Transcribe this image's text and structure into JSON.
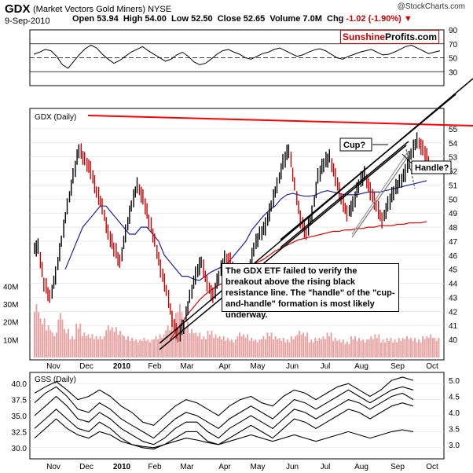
{
  "header": {
    "title": "GDX",
    "subtitle": "(Market Vectors Gold Miners)",
    "exchange": "NYSE",
    "date": "9-Sep-2010",
    "open_label": "Open",
    "open": "53.94",
    "high_label": "High",
    "high": "54.00",
    "low_label": "Low",
    "low": "52.50",
    "close_label": "Close",
    "close": "52.65",
    "volume_label": "Volume",
    "volume": "7.0M",
    "chg_label": "Chg",
    "chg": "-1.02 (-1.90%)",
    "copyright": "@StockCharts.com",
    "brand_part1": "Sunshine",
    "brand_part2": "Profits.com"
  },
  "annotations": {
    "cup": "Cup?",
    "handle": "Handle?",
    "note": "The GDX ETF failed to verify the breakout above the rising black resistance line. The \"handle\" of the \"cup-and-handle\" formation is most likely underway."
  },
  "colors": {
    "up": "#000000",
    "down": "#cc0000",
    "resistance": "#ff0000",
    "ma50": "#1f1fa0",
    "ma200": "#dd0000",
    "volume": "#e8a0a0"
  },
  "chart_data": [
    {
      "type": "line",
      "title": "",
      "ylim": [
        10,
        90
      ],
      "y_ticks": [
        "90",
        "70",
        "50",
        "30"
      ],
      "reference_lines": [
        70,
        50,
        30
      ],
      "values": [
        55,
        58,
        62,
        60,
        52,
        40,
        35,
        45,
        55,
        63,
        68,
        64,
        55,
        48,
        42,
        46,
        52,
        58,
        62,
        66,
        60,
        55,
        50,
        45,
        48,
        54,
        58,
        52,
        44,
        40,
        42,
        48,
        55,
        60,
        62,
        58,
        55,
        50,
        48,
        52,
        56,
        58,
        62,
        64,
        60,
        56,
        52,
        54,
        58,
        61,
        63,
        60,
        55,
        50,
        48,
        52,
        55,
        58,
        60,
        62,
        58,
        54,
        55,
        58,
        62,
        66,
        68,
        64,
        60,
        56,
        58,
        60
      ]
    },
    {
      "type": "line",
      "title": "GDX (Daily)",
      "ylim": [
        39,
        56
      ],
      "y_ticks": [
        "55",
        "54",
        "53",
        "52",
        "51",
        "50",
        "49",
        "48",
        "47",
        "46",
        "45",
        "44",
        "43",
        "42",
        "41",
        "40"
      ],
      "volume_ticks": [
        "40M",
        "30M",
        "20M",
        "10M"
      ],
      "x_ticks": [
        "Nov",
        "Dec",
        "2010",
        "Feb",
        "Mar",
        "Apr",
        "May",
        "Jun",
        "Jul",
        "Aug",
        "Sep",
        "Oct"
      ],
      "series": [
        {
          "values": [
            46.5,
            44,
            43,
            44.5,
            47,
            49.5,
            51.5,
            53.5,
            52.8,
            52,
            50.5,
            49.5,
            47.5,
            46.5,
            45.5,
            47.5,
            49.5,
            51,
            50,
            48.5,
            47,
            45,
            43.5,
            41.5,
            40.2,
            41,
            43,
            44.5,
            45.5,
            44,
            43,
            44.5,
            45.8,
            45.5,
            44,
            43.5,
            44.5,
            46.5,
            47.5,
            48,
            49.5,
            51,
            52.5,
            53.5,
            51,
            48.5,
            47.5,
            49,
            51.5,
            52.5,
            53,
            51.5,
            50,
            49,
            49.5,
            51,
            51.8,
            50.5,
            49.5,
            48.5,
            49.5,
            50.5,
            51.2,
            51.8,
            53.2,
            54.2,
            53.5,
            52.65
          ]
        },
        {
          "values": [
            null,
            null,
            null,
            null,
            null,
            45,
            46,
            47,
            48,
            48.5,
            49,
            49.5,
            49.5,
            49,
            48.5,
            48,
            47.5,
            47.5,
            48,
            48,
            47.5,
            47,
            46,
            45.5,
            45,
            44.5,
            44.5,
            44.3,
            44.2,
            44.5,
            44.8,
            45,
            45.2,
            45.5,
            46,
            46.5,
            47,
            47.8,
            48.3,
            48.8,
            49.2,
            49.5,
            50,
            50.3,
            50.4,
            50.3,
            50.2,
            50.2,
            50.3,
            50.5,
            50.6,
            50.5,
            50.4,
            50.3,
            50.3,
            50.3,
            50.4,
            50.5,
            50.5,
            50.5,
            50.6,
            50.7,
            50.8,
            50.9,
            51,
            51.1,
            51.2,
            51.3
          ]
        },
        {
          "values": [
            null,
            null,
            null,
            null,
            null,
            null,
            null,
            null,
            null,
            null,
            null,
            null,
            null,
            null,
            null,
            null,
            null,
            null,
            null,
            null,
            null,
            null,
            null,
            40,
            40.6,
            41.2,
            41.8,
            42.3,
            42.8,
            43.2,
            43.5,
            43.8,
            44,
            44.2,
            44.5,
            44.8,
            45,
            45.3,
            45.5,
            45.7,
            46,
            46.3,
            46.5,
            46.7,
            46.9,
            47.1,
            47.2,
            47.3,
            47.4,
            47.5,
            47.6,
            47.7,
            47.7,
            47.8,
            47.8,
            47.9,
            47.9,
            48,
            48,
            48.1,
            48.1,
            48.1,
            48.2,
            48.2,
            48.3,
            48.3,
            48.3,
            48.4
          ]
        }
      ],
      "volume_millions": [
        30,
        22,
        18,
        14,
        25,
        16,
        12,
        19,
        14,
        13,
        12,
        12,
        18,
        17,
        15,
        12,
        11,
        10,
        11,
        10,
        12,
        13,
        18,
        25,
        30,
        20,
        16,
        14,
        12,
        15,
        13,
        12,
        11,
        10,
        14,
        13,
        11,
        10,
        12,
        14,
        12,
        11,
        10,
        12,
        15,
        14,
        10,
        11,
        12,
        14,
        11,
        10,
        9,
        12,
        11,
        10,
        12,
        13,
        10,
        11,
        10,
        11,
        12,
        11,
        10,
        12,
        13,
        11
      ]
    },
    {
      "type": "line",
      "title": "GSS (Daily)",
      "ylim_left": [
        29,
        41
      ],
      "ylim_right": [
        2.7,
        5.1
      ],
      "y_ticks_left": [
        "40.0",
        "37.5",
        "35.0",
        "32.5",
        "30.0"
      ],
      "y_ticks_right": [
        "5.0",
        "4.5",
        "4.0",
        "3.5",
        "3.0"
      ],
      "x_ticks": [
        "Nov",
        "Dec",
        "2010",
        "Feb",
        "Mar",
        "Apr",
        "May",
        "Jun",
        "Jul",
        "Aug",
        "Sep",
        "Oct"
      ],
      "series": [
        {
          "values": [
            38.5,
            39.5,
            40.3,
            39,
            37.5,
            38,
            39,
            38,
            36.5,
            35.5,
            34,
            33.5,
            35,
            36.5,
            37.5,
            37,
            36,
            35,
            36.5,
            37.5,
            38,
            37,
            36.5,
            38,
            39,
            38.5,
            37.5,
            38.5,
            39.5,
            40,
            39,
            38,
            39,
            40.5,
            41,
            40.5
          ]
        },
        {
          "values": [
            37,
            38.5,
            39.5,
            38,
            36,
            35.5,
            37,
            36,
            34.5,
            33.5,
            32.5,
            31.5,
            33,
            34.5,
            35.5,
            35,
            34,
            33,
            34.5,
            35.5,
            36.5,
            35.5,
            34.5,
            36,
            37.5,
            37,
            36,
            37,
            38,
            39,
            38,
            37,
            38,
            39,
            39.5,
            39
          ]
        },
        {
          "values": [
            35,
            36.5,
            38,
            36.5,
            34.5,
            34,
            35.5,
            34.5,
            33,
            32,
            31,
            30.5,
            31.5,
            33,
            34,
            34,
            32.5,
            31.5,
            33,
            34,
            35,
            34,
            33,
            34.5,
            36,
            35.5,
            34.5,
            35.5,
            36.5,
            37.5,
            37,
            36,
            37,
            38,
            38.5,
            37.5
          ]
        },
        {
          "values": [
            33,
            34.5,
            36,
            34.5,
            33,
            32.5,
            34,
            33,
            31.5,
            30.5,
            30,
            29.8,
            30.5,
            31.5,
            32.5,
            32.5,
            31,
            30.5,
            31.5,
            32.5,
            33.5,
            32.5,
            31.5,
            33,
            34.5,
            34,
            33,
            34,
            35,
            36,
            35.5,
            34.5,
            35.5,
            36.5,
            37,
            36.5
          ]
        },
        {
          "values": [
            31.5,
            33,
            34.5,
            33,
            32,
            31.5,
            32.5,
            32,
            31,
            30.5,
            30.2,
            30,
            30.5,
            31,
            31.5,
            31.2,
            30.8,
            30.5,
            31,
            31.5,
            32,
            31.5,
            31,
            31.5,
            32,
            31.5,
            31,
            31.5,
            32,
            32.5,
            32,
            31.5,
            32,
            32.5,
            32.8,
            32.5
          ]
        }
      ]
    }
  ]
}
